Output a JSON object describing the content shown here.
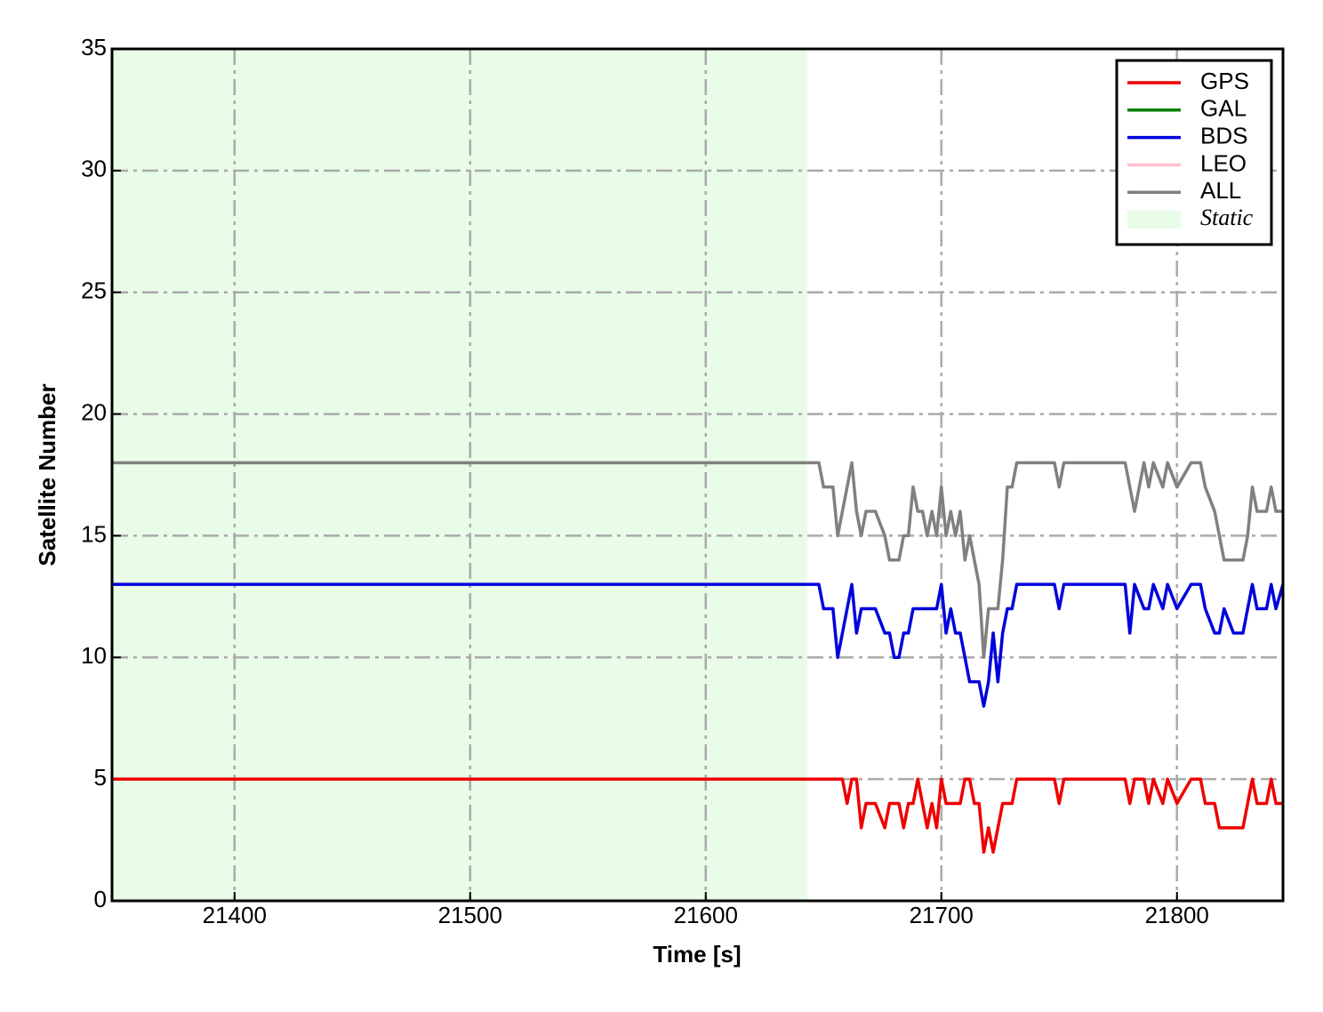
{
  "chart_data": {
    "type": "line",
    "xlabel": "Time [s]",
    "ylabel": "Satellite Number",
    "xlim": [
      21348,
      21845
    ],
    "ylim": [
      0,
      35
    ],
    "xticks": [
      21400,
      21500,
      21600,
      21700,
      21800
    ],
    "yticks": [
      0,
      5,
      10,
      15,
      20,
      25,
      30,
      35
    ],
    "grid": true,
    "legend": "upper right",
    "shaded_region": {
      "label": "Static",
      "x": [
        21348,
        21643
      ],
      "color": "#e8fce8"
    },
    "x": [
      21348,
      21648,
      21650,
      21654,
      21656,
      21658,
      21660,
      21662,
      21664,
      21666,
      21668,
      21672,
      21676,
      21678,
      21680,
      21682,
      21684,
      21686,
      21688,
      21690,
      21692,
      21694,
      21696,
      21698,
      21700,
      21702,
      21704,
      21706,
      21708,
      21710,
      21712,
      21714,
      21716,
      21718,
      21720,
      21722,
      21724,
      21726,
      21728,
      21730,
      21732,
      21748,
      21750,
      21752,
      21778,
      21780,
      21782,
      21786,
      21788,
      21790,
      21794,
      21796,
      21800,
      21806,
      21810,
      21812,
      21816,
      21818,
      21820,
      21824,
      21828,
      21830,
      21832,
      21834,
      21838,
      21840,
      21842,
      21845
    ],
    "series": [
      {
        "name": "GPS",
        "color": "#ee0000",
        "values": [
          5,
          5,
          5,
          5,
          5,
          5,
          4,
          5,
          5,
          3,
          4,
          4,
          3,
          4,
          4,
          4,
          3,
          4,
          4,
          5,
          4,
          3,
          4,
          3,
          5,
          4,
          4,
          4,
          4,
          5,
          5,
          4,
          4,
          2,
          3,
          2,
          3,
          4,
          4,
          4,
          5,
          5,
          4,
          5,
          5,
          4,
          5,
          5,
          4,
          5,
          4,
          5,
          4,
          5,
          5,
          4,
          4,
          3,
          3,
          3,
          3,
          4,
          5,
          4,
          4,
          5,
          4,
          4
        ]
      },
      {
        "name": "GAL",
        "color": "#008000",
        "values": [
          null,
          null,
          null,
          null,
          null,
          null,
          null,
          null,
          null,
          null,
          null,
          null,
          null,
          null,
          null,
          null,
          null,
          null,
          null,
          null,
          null,
          null,
          null,
          null,
          null,
          null,
          null,
          null,
          null,
          null,
          null,
          null,
          null,
          null,
          null,
          null,
          null,
          null,
          null,
          null,
          null,
          null,
          null,
          null,
          null,
          null,
          null,
          null,
          null,
          null,
          null,
          null,
          null,
          null,
          null,
          null,
          null,
          null,
          null,
          null,
          null,
          null,
          null,
          null,
          null,
          null,
          null,
          null
        ]
      },
      {
        "name": "BDS",
        "color": "#0000dd",
        "values": [
          13,
          13,
          12,
          12,
          10,
          11,
          12,
          13,
          11,
          12,
          12,
          12,
          11,
          11,
          10,
          10,
          11,
          11,
          12,
          12,
          12,
          12,
          12,
          12,
          13,
          11,
          12,
          11,
          11,
          10,
          9,
          9,
          9,
          8,
          9,
          11,
          9,
          11,
          12,
          12,
          13,
          13,
          12,
          13,
          13,
          11,
          13,
          12,
          12,
          13,
          12,
          13,
          12,
          13,
          13,
          12,
          11,
          11,
          12,
          11,
          11,
          12,
          13,
          12,
          12,
          13,
          12,
          13
        ]
      },
      {
        "name": "LEO",
        "color": "#ffc0cb",
        "values": [
          null,
          null,
          null,
          null,
          null,
          null,
          null,
          null,
          null,
          null,
          null,
          null,
          null,
          null,
          null,
          null,
          null,
          null,
          null,
          null,
          null,
          null,
          null,
          null,
          null,
          null,
          null,
          null,
          null,
          null,
          null,
          null,
          null,
          null,
          null,
          null,
          null,
          null,
          null,
          null,
          null,
          null,
          null,
          null,
          null,
          null,
          null,
          null,
          null,
          null,
          null,
          null,
          null,
          null,
          null,
          null,
          null,
          null,
          null,
          null,
          null,
          null,
          null,
          null,
          null,
          null,
          null,
          null
        ]
      },
      {
        "name": "ALL",
        "color": "#808080",
        "values": [
          18,
          18,
          17,
          17,
          15,
          16,
          17,
          18,
          16,
          15,
          16,
          16,
          15,
          14,
          14,
          14,
          15,
          15,
          17,
          16,
          16,
          15,
          16,
          15,
          17,
          15,
          16,
          15,
          16,
          14,
          15,
          14,
          13,
          10,
          12,
          12,
          12,
          14,
          17,
          17,
          18,
          18,
          17,
          18,
          18,
          17,
          16,
          18,
          17,
          18,
          17,
          18,
          17,
          18,
          18,
          17,
          16,
          15,
          14,
          14,
          14,
          15,
          17,
          16,
          16,
          17,
          16,
          16
        ]
      }
    ]
  }
}
